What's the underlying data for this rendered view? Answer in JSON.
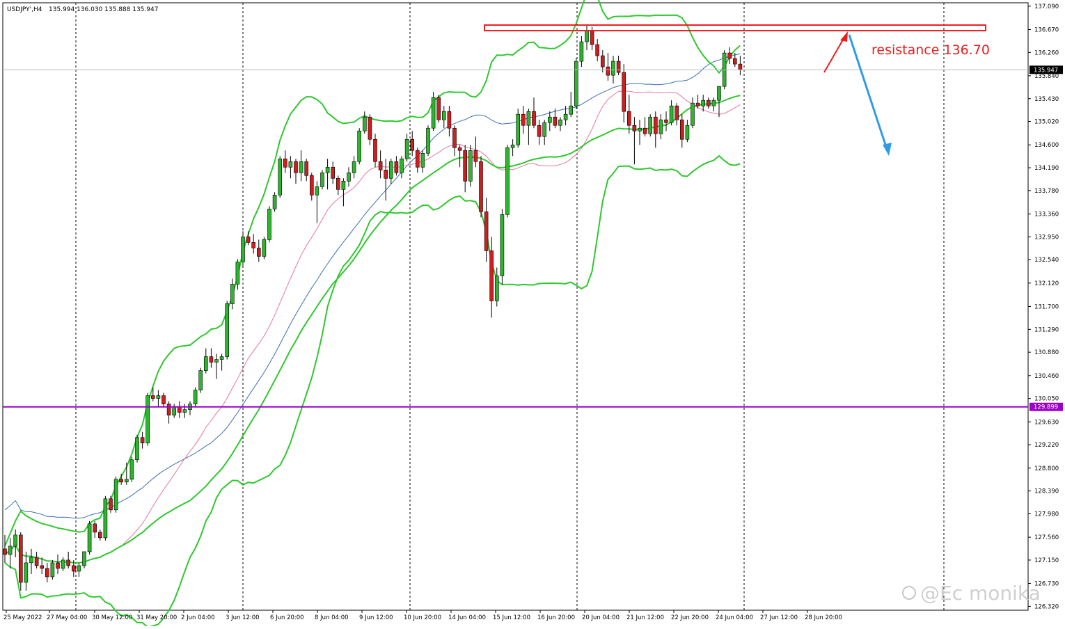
{
  "header": {
    "symbol": "USDJPY',H4",
    "ohlc": "135.994 136.030 135.888 135.947"
  },
  "annotation": {
    "resistance_label": "resistance 136.70"
  },
  "watermark": "@Ec monika",
  "colors": {
    "bull": "#2db52d",
    "bear": "#cc1f1f",
    "bollinger": "#2ec82e",
    "ma_pink": "#e8769a",
    "ma_blue": "#3a6fb0",
    "support_line": "#9a00c8",
    "resistance": "#ee1c1c",
    "arrow_down": "#2f9be8",
    "grid": "#000000"
  },
  "chart_data": {
    "type": "candlestick",
    "title": "USDJPY',H4",
    "y_axis_labels": [
      "137.090",
      "136.670",
      "136.260",
      "135.840",
      "135.430",
      "135.020",
      "134.600",
      "134.190",
      "133.780",
      "133.360",
      "132.950",
      "132.540",
      "132.120",
      "131.700",
      "131.290",
      "130.880",
      "130.460",
      "130.050",
      "129.630",
      "129.220",
      "128.800",
      "128.390",
      "127.980",
      "127.560",
      "127.150",
      "126.730",
      "126.320"
    ],
    "ylim": [
      126.25,
      137.15
    ],
    "current_price": "135.947",
    "horizontal_level": {
      "label": "129.899",
      "value": 129.899
    },
    "resistance": {
      "label": "resistance 136.70",
      "value": 136.7
    },
    "x_axis_labels": [
      "25 May 2022",
      "27 May 04:00",
      "30 May 12:00",
      "31 May 20:00",
      "2 Jun 04:00",
      "3 Jun 12:00",
      "6 Jun 20:00",
      "8 Jun 04:00",
      "9 Jun 12:00",
      "10 Jun 20:00",
      "14 Jun 04:00",
      "15 Jun 12:00",
      "16 Jun 20:00",
      "20 Jun 04:00",
      "21 Jun 12:00",
      "22 Jun 20:00",
      "24 Jun 04:00",
      "27 Jun 12:00",
      "28 Jun 20:00"
    ],
    "legend": "none",
    "grid": "vertical dashed",
    "candles": [
      [
        127.35,
        127.6,
        127.1,
        127.25
      ],
      [
        127.25,
        127.55,
        127.0,
        127.4
      ],
      [
        127.4,
        127.7,
        127.2,
        127.6
      ],
      [
        127.6,
        127.65,
        126.6,
        126.75
      ],
      [
        126.75,
        127.3,
        126.6,
        127.1
      ],
      [
        127.1,
        127.35,
        126.9,
        127.2
      ],
      [
        127.2,
        127.3,
        127.0,
        127.05
      ],
      [
        127.05,
        127.2,
        126.9,
        127.0
      ],
      [
        127.0,
        127.1,
        126.75,
        126.85
      ],
      [
        126.85,
        127.15,
        126.8,
        127.1
      ],
      [
        127.1,
        127.25,
        126.9,
        127.0
      ],
      [
        127.0,
        127.2,
        126.95,
        127.15
      ],
      [
        127.15,
        127.3,
        127.0,
        127.05
      ],
      [
        127.05,
        127.15,
        126.85,
        126.95
      ],
      [
        126.95,
        127.1,
        126.85,
        127.05
      ],
      [
        127.05,
        127.3,
        127.0,
        127.3
      ],
      [
        127.3,
        127.85,
        127.25,
        127.8
      ],
      [
        127.8,
        127.85,
        127.55,
        127.65
      ],
      [
        127.65,
        127.7,
        127.5,
        127.55
      ],
      [
        127.55,
        128.3,
        127.5,
        128.25
      ],
      [
        128.25,
        128.3,
        128.0,
        128.05
      ],
      [
        128.05,
        128.65,
        128.0,
        128.6
      ],
      [
        128.6,
        128.7,
        128.5,
        128.55
      ],
      [
        128.55,
        128.9,
        128.5,
        128.6
      ],
      [
        128.6,
        129.0,
        128.55,
        128.95
      ],
      [
        128.95,
        129.4,
        128.9,
        129.35
      ],
      [
        129.35,
        129.45,
        129.15,
        129.25
      ],
      [
        129.25,
        130.15,
        129.2,
        130.1
      ],
      [
        130.1,
        130.25,
        130.0,
        130.05
      ],
      [
        130.05,
        130.2,
        129.9,
        130.1
      ],
      [
        130.1,
        130.15,
        129.9,
        129.95
      ],
      [
        129.95,
        130.0,
        129.6,
        129.75
      ],
      [
        129.75,
        129.95,
        129.7,
        129.9
      ],
      [
        129.9,
        130.0,
        129.7,
        129.8
      ],
      [
        129.8,
        129.95,
        129.7,
        129.85
      ],
      [
        129.85,
        130.0,
        129.75,
        129.95
      ],
      [
        129.95,
        130.25,
        129.9,
        130.2
      ],
      [
        130.2,
        130.6,
        130.15,
        130.55
      ],
      [
        130.55,
        130.95,
        130.5,
        130.8
      ],
      [
        130.8,
        130.95,
        130.6,
        130.7
      ],
      [
        130.7,
        130.85,
        130.4,
        130.75
      ],
      [
        130.75,
        130.85,
        130.55,
        130.8
      ],
      [
        130.8,
        131.8,
        130.75,
        131.75
      ],
      [
        131.75,
        132.2,
        131.65,
        132.1
      ],
      [
        132.1,
        132.55,
        132.0,
        132.5
      ],
      [
        132.5,
        133.05,
        132.4,
        132.95
      ],
      [
        132.95,
        133.05,
        132.8,
        132.85
      ],
      [
        132.85,
        133.0,
        132.65,
        132.75
      ],
      [
        132.75,
        132.9,
        132.5,
        132.6
      ],
      [
        132.6,
        132.95,
        132.55,
        132.9
      ],
      [
        132.9,
        133.5,
        132.85,
        133.45
      ],
      [
        133.45,
        133.75,
        133.4,
        133.7
      ],
      [
        133.7,
        134.4,
        133.65,
        134.35
      ],
      [
        134.35,
        134.5,
        134.1,
        134.2
      ],
      [
        134.2,
        134.4,
        134.0,
        134.3
      ],
      [
        134.3,
        134.35,
        133.9,
        134.1
      ],
      [
        134.1,
        134.5,
        133.95,
        134.3
      ],
      [
        134.3,
        134.35,
        133.95,
        134.05
      ],
      [
        134.05,
        134.1,
        133.6,
        133.7
      ],
      [
        133.7,
        133.95,
        133.2,
        133.85
      ],
      [
        133.85,
        134.15,
        133.8,
        134.1
      ],
      [
        134.1,
        134.35,
        133.8,
        134.2
      ],
      [
        134.2,
        134.3,
        133.9,
        134.0
      ],
      [
        134.0,
        134.05,
        133.7,
        133.8
      ],
      [
        133.8,
        134.0,
        133.5,
        133.95
      ],
      [
        133.95,
        134.2,
        133.85,
        134.1
      ],
      [
        134.1,
        134.4,
        134.0,
        134.3
      ],
      [
        134.3,
        134.9,
        134.25,
        134.85
      ],
      [
        134.85,
        135.2,
        134.8,
        135.1
      ],
      [
        135.1,
        135.15,
        134.6,
        134.7
      ],
      [
        134.7,
        134.8,
        134.2,
        134.3
      ],
      [
        134.3,
        134.5,
        134.0,
        134.15
      ],
      [
        134.15,
        134.35,
        133.6,
        134.0
      ],
      [
        134.0,
        134.35,
        133.9,
        134.3
      ],
      [
        134.3,
        134.4,
        134.05,
        134.1
      ],
      [
        134.1,
        134.4,
        134.0,
        134.35
      ],
      [
        134.35,
        134.8,
        134.3,
        134.7
      ],
      [
        134.7,
        134.85,
        134.4,
        134.5
      ],
      [
        134.5,
        134.55,
        134.1,
        134.2
      ],
      [
        134.2,
        134.5,
        134.1,
        134.45
      ],
      [
        134.45,
        134.95,
        134.4,
        134.9
      ],
      [
        134.9,
        135.55,
        134.85,
        135.45
      ],
      [
        135.45,
        135.5,
        135.0,
        135.05
      ],
      [
        135.05,
        135.3,
        134.9,
        135.2
      ],
      [
        135.2,
        135.3,
        134.75,
        134.9
      ],
      [
        134.9,
        134.95,
        134.4,
        134.55
      ],
      [
        134.55,
        134.6,
        134.2,
        134.5
      ],
      [
        134.5,
        134.6,
        133.75,
        133.95
      ],
      [
        133.95,
        134.6,
        133.85,
        134.5
      ],
      [
        134.5,
        134.75,
        134.2,
        134.3
      ],
      [
        134.3,
        134.4,
        133.3,
        133.4
      ],
      [
        133.4,
        133.65,
        132.5,
        132.7
      ],
      [
        132.7,
        132.95,
        131.5,
        131.8
      ],
      [
        131.8,
        132.4,
        131.7,
        132.25
      ],
      [
        132.25,
        133.45,
        132.1,
        133.35
      ],
      [
        133.35,
        134.6,
        133.3,
        134.55
      ],
      [
        134.55,
        134.7,
        134.4,
        134.6
      ],
      [
        134.6,
        135.25,
        134.55,
        135.15
      ],
      [
        135.15,
        135.3,
        134.8,
        134.95
      ],
      [
        134.95,
        135.25,
        134.6,
        135.2
      ],
      [
        135.2,
        135.45,
        134.9,
        134.95
      ],
      [
        134.95,
        135.05,
        134.6,
        134.75
      ],
      [
        134.75,
        135.05,
        134.6,
        135.0
      ],
      [
        135.0,
        135.2,
        134.85,
        135.1
      ],
      [
        135.1,
        135.25,
        134.9,
        134.95
      ],
      [
        134.95,
        135.1,
        134.85,
        135.05
      ],
      [
        135.05,
        135.3,
        134.95,
        135.15
      ],
      [
        135.15,
        135.55,
        135.1,
        135.3
      ],
      [
        135.3,
        136.15,
        135.25,
        136.1
      ],
      [
        136.1,
        136.55,
        136.0,
        136.45
      ],
      [
        136.45,
        136.75,
        136.3,
        136.65
      ],
      [
        136.65,
        136.72,
        136.3,
        136.4
      ],
      [
        136.4,
        136.5,
        136.1,
        136.2
      ],
      [
        136.2,
        136.3,
        135.9,
        136.0
      ],
      [
        136.0,
        136.25,
        135.75,
        135.85
      ],
      [
        135.85,
        136.2,
        135.7,
        136.1
      ],
      [
        136.1,
        136.2,
        135.85,
        135.9
      ],
      [
        135.9,
        136.05,
        135.0,
        135.2
      ],
      [
        135.2,
        135.5,
        134.8,
        134.95
      ],
      [
        134.95,
        135.1,
        134.25,
        134.85
      ],
      [
        134.85,
        135.05,
        134.6,
        134.9
      ],
      [
        134.9,
        135.1,
        134.75,
        134.8
      ],
      [
        134.8,
        135.15,
        134.75,
        135.1
      ],
      [
        135.1,
        135.2,
        134.55,
        134.8
      ],
      [
        134.8,
        135.15,
        134.7,
        135.05
      ],
      [
        135.05,
        135.2,
        134.85,
        135.0
      ],
      [
        135.0,
        135.4,
        134.95,
        135.3
      ],
      [
        135.3,
        135.35,
        134.95,
        135.05
      ],
      [
        135.05,
        135.15,
        134.55,
        134.7
      ],
      [
        134.7,
        135.05,
        134.65,
        134.95
      ],
      [
        134.95,
        135.45,
        134.9,
        135.35
      ],
      [
        135.35,
        135.5,
        135.25,
        135.3
      ],
      [
        135.3,
        135.5,
        135.2,
        135.4
      ],
      [
        135.4,
        135.45,
        135.25,
        135.3
      ],
      [
        135.3,
        135.45,
        135.2,
        135.4
      ],
      [
        135.4,
        135.65,
        135.1,
        135.65
      ],
      [
        135.65,
        136.3,
        135.6,
        136.25
      ],
      [
        136.25,
        136.35,
        136.05,
        136.15
      ],
      [
        136.15,
        136.25,
        136.0,
        136.05
      ],
      [
        136.05,
        136.2,
        135.85,
        135.95
      ]
    ]
  }
}
